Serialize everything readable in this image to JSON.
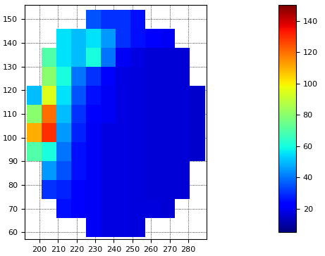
{
  "chart_data": {
    "type": "heatmap",
    "x_edges": [
      193,
      201,
      209,
      217,
      225,
      233,
      241,
      249,
      257,
      265,
      273,
      281,
      289
    ],
    "y_edges": [
      58,
      66,
      74,
      82,
      90,
      98,
      106,
      114,
      122,
      130,
      138,
      146,
      154
    ],
    "cells": [
      [
        null,
        null,
        null,
        null,
        20,
        18,
        18,
        17,
        null,
        null,
        null,
        null
      ],
      [
        null,
        null,
        25,
        22,
        20,
        18,
        18,
        17,
        17,
        16,
        null,
        null
      ],
      [
        null,
        30,
        28,
        22,
        20,
        18,
        18,
        17,
        16,
        16,
        16,
        null
      ],
      [
        null,
        45,
        35,
        25,
        20,
        18,
        18,
        17,
        16,
        16,
        16,
        null
      ],
      [
        70,
        60,
        40,
        25,
        20,
        18,
        18,
        17,
        16,
        16,
        16,
        15
      ],
      [
        110,
        130,
        45,
        28,
        20,
        18,
        18,
        17,
        16,
        16,
        16,
        15
      ],
      [
        80,
        120,
        50,
        30,
        22,
        20,
        18,
        17,
        16,
        16,
        16,
        15
      ],
      [
        50,
        95,
        55,
        35,
        25,
        20,
        18,
        17,
        16,
        16,
        16,
        15
      ],
      [
        null,
        80,
        60,
        40,
        30,
        22,
        18,
        17,
        16,
        16,
        16,
        null
      ],
      [
        null,
        70,
        55,
        50,
        60,
        40,
        20,
        18,
        16,
        16,
        16,
        null
      ],
      [
        null,
        null,
        55,
        50,
        55,
        45,
        30,
        25,
        22,
        20,
        null,
        null
      ],
      [
        null,
        null,
        null,
        null,
        35,
        30,
        30,
        25,
        null,
        null,
        null,
        null
      ]
    ],
    "xlim": [
      192,
      290
    ],
    "ylim": [
      57,
      156
    ],
    "xticks": [
      200,
      210,
      220,
      230,
      240,
      250,
      260,
      270,
      280
    ],
    "yticks": [
      60,
      70,
      80,
      90,
      100,
      110,
      120,
      130,
      140,
      150
    ],
    "colorbar_range": [
      5,
      150
    ],
    "colorbar_ticks": [
      20,
      40,
      60,
      80,
      100,
      120,
      140
    ],
    "grid": true
  }
}
